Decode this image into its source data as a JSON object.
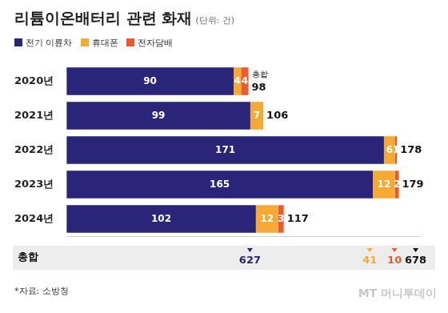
{
  "chart_data": {
    "type": "bar",
    "title": "리튬이온배터리 관련 화재",
    "subtitle": "(단위: 건)",
    "orientation": "horizontal",
    "stacked": true,
    "data_labels": true,
    "legend": "top-left",
    "grid": false,
    "tick_labels": "y",
    "categories": [
      "2020년",
      "2021년",
      "2022년",
      "2023년",
      "2024년"
    ],
    "series": [
      {
        "name": "전기 이륜차",
        "color": "#2a2578",
        "values": [
          90,
          99,
          171,
          165,
          102
        ]
      },
      {
        "name": "휴대폰",
        "color": "#f6a935",
        "values": [
          4,
          7,
          6,
          12,
          12
        ]
      },
      {
        "name": "전자담배",
        "color": "#ec5a2c",
        "values": [
          4,
          0,
          1,
          2,
          3
        ]
      }
    ],
    "xlim": [
      0,
      190
    ],
    "totals": [
      98,
      106,
      178,
      179,
      117
    ],
    "total_label": "총합",
    "summary": {
      "label": "총합",
      "values": [
        627,
        41,
        10
      ],
      "total": 678
    },
    "source": "*자료: 소방청",
    "watermark": "MT 머니투데이"
  }
}
